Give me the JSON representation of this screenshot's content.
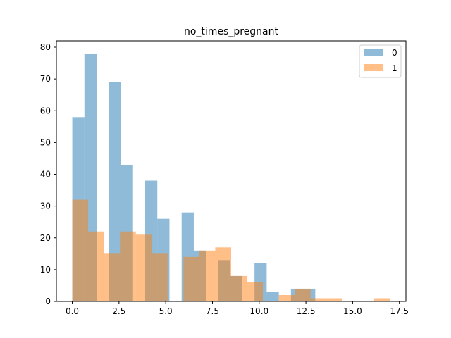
{
  "chart_data": {
    "type": "bar",
    "title": "no_times_pregnant",
    "xlabel": "",
    "ylabel": "",
    "xlim": [
      -0.85,
      17.85
    ],
    "ylim": [
      0,
      82
    ],
    "x_ticks": [
      0,
      2.5,
      5,
      7.5,
      10,
      12.5,
      15,
      17.5
    ],
    "x_tick_labels": [
      "0.0",
      "2.5",
      "5.0",
      "7.5",
      "10.0",
      "12.5",
      "15.0",
      "17.5"
    ],
    "y_ticks": [
      0,
      10,
      20,
      30,
      40,
      50,
      60,
      70,
      80
    ],
    "y_tick_labels": [
      "0",
      "10",
      "20",
      "30",
      "40",
      "50",
      "60",
      "70",
      "80"
    ],
    "grid": false,
    "legend_position": "top-right",
    "series": [
      {
        "name": "0",
        "color": "#1f77b4",
        "alpha": 0.5,
        "bin_start": 0,
        "bin_width": 0.65,
        "counts": [
          58,
          78,
          0,
          69,
          43,
          0,
          38,
          26,
          0,
          28,
          16,
          0,
          13,
          8,
          0,
          12,
          3,
          0,
          4,
          4
        ]
      },
      {
        "name": "1",
        "color": "#ff7f0e",
        "alpha": 0.5,
        "bin_start": 0,
        "bin_width": 0.85,
        "counts": [
          32,
          22,
          15,
          22,
          21,
          15,
          0,
          14,
          16,
          17,
          8,
          6,
          0,
          2,
          4,
          1,
          1,
          0,
          0,
          1
        ]
      }
    ]
  }
}
